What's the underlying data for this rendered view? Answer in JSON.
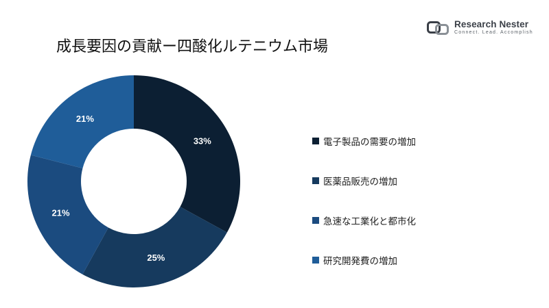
{
  "title": "成長要因の貢献ー四酸化ルテニウム市場",
  "logo": {
    "name": "Research Nester",
    "tagline": "Connect. Lead. Accomplish"
  },
  "chart_data": {
    "type": "pie",
    "donut": true,
    "categories": [
      "電子製品の需要の増加",
      "医薬品販売の増加",
      "急速な工業化と都市化",
      "研究開発費の増加"
    ],
    "values": [
      33,
      25,
      21,
      21
    ],
    "value_labels": [
      "33%",
      "25%",
      "21%",
      "21%"
    ],
    "colors": [
      "#0c1f33",
      "#163a5e",
      "#1b4b7f",
      "#1f5d99"
    ],
    "legend_position": "right"
  }
}
